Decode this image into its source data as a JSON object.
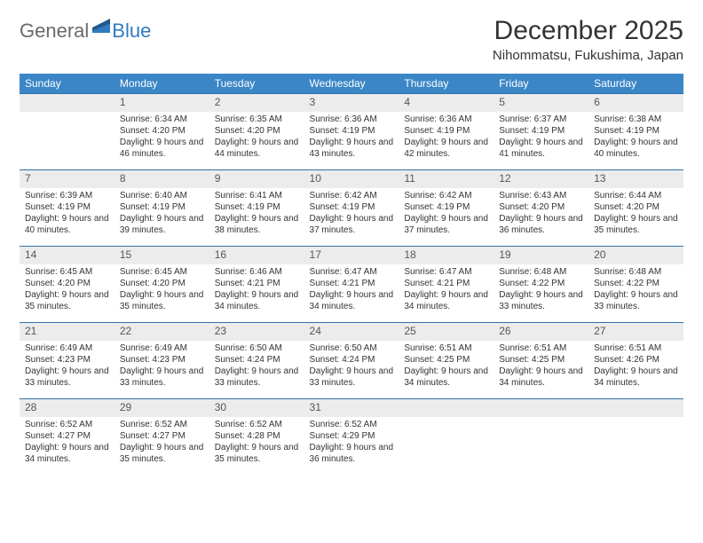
{
  "logo": {
    "text1": "General",
    "text2": "Blue"
  },
  "title": "December 2025",
  "location": "Nihommatsu, Fukushima, Japan",
  "colors": {
    "header_bg": "#3b86c6",
    "header_text": "#ffffff",
    "daynum_bg": "#ececec",
    "border": "#2f6fa8",
    "body_text": "#333333",
    "logo_gray": "#6a6a6a",
    "logo_blue": "#2f7bbf"
  },
  "day_headers": [
    "Sunday",
    "Monday",
    "Tuesday",
    "Wednesday",
    "Thursday",
    "Friday",
    "Saturday"
  ],
  "weeks": [
    [
      null,
      {
        "n": "1",
        "sr": "Sunrise: 6:34 AM",
        "ss": "Sunset: 4:20 PM",
        "dl": "Daylight: 9 hours and 46 minutes."
      },
      {
        "n": "2",
        "sr": "Sunrise: 6:35 AM",
        "ss": "Sunset: 4:20 PM",
        "dl": "Daylight: 9 hours and 44 minutes."
      },
      {
        "n": "3",
        "sr": "Sunrise: 6:36 AM",
        "ss": "Sunset: 4:19 PM",
        "dl": "Daylight: 9 hours and 43 minutes."
      },
      {
        "n": "4",
        "sr": "Sunrise: 6:36 AM",
        "ss": "Sunset: 4:19 PM",
        "dl": "Daylight: 9 hours and 42 minutes."
      },
      {
        "n": "5",
        "sr": "Sunrise: 6:37 AM",
        "ss": "Sunset: 4:19 PM",
        "dl": "Daylight: 9 hours and 41 minutes."
      },
      {
        "n": "6",
        "sr": "Sunrise: 6:38 AM",
        "ss": "Sunset: 4:19 PM",
        "dl": "Daylight: 9 hours and 40 minutes."
      }
    ],
    [
      {
        "n": "7",
        "sr": "Sunrise: 6:39 AM",
        "ss": "Sunset: 4:19 PM",
        "dl": "Daylight: 9 hours and 40 minutes."
      },
      {
        "n": "8",
        "sr": "Sunrise: 6:40 AM",
        "ss": "Sunset: 4:19 PM",
        "dl": "Daylight: 9 hours and 39 minutes."
      },
      {
        "n": "9",
        "sr": "Sunrise: 6:41 AM",
        "ss": "Sunset: 4:19 PM",
        "dl": "Daylight: 9 hours and 38 minutes."
      },
      {
        "n": "10",
        "sr": "Sunrise: 6:42 AM",
        "ss": "Sunset: 4:19 PM",
        "dl": "Daylight: 9 hours and 37 minutes."
      },
      {
        "n": "11",
        "sr": "Sunrise: 6:42 AM",
        "ss": "Sunset: 4:19 PM",
        "dl": "Daylight: 9 hours and 37 minutes."
      },
      {
        "n": "12",
        "sr": "Sunrise: 6:43 AM",
        "ss": "Sunset: 4:20 PM",
        "dl": "Daylight: 9 hours and 36 minutes."
      },
      {
        "n": "13",
        "sr": "Sunrise: 6:44 AM",
        "ss": "Sunset: 4:20 PM",
        "dl": "Daylight: 9 hours and 35 minutes."
      }
    ],
    [
      {
        "n": "14",
        "sr": "Sunrise: 6:45 AM",
        "ss": "Sunset: 4:20 PM",
        "dl": "Daylight: 9 hours and 35 minutes."
      },
      {
        "n": "15",
        "sr": "Sunrise: 6:45 AM",
        "ss": "Sunset: 4:20 PM",
        "dl": "Daylight: 9 hours and 35 minutes."
      },
      {
        "n": "16",
        "sr": "Sunrise: 6:46 AM",
        "ss": "Sunset: 4:21 PM",
        "dl": "Daylight: 9 hours and 34 minutes."
      },
      {
        "n": "17",
        "sr": "Sunrise: 6:47 AM",
        "ss": "Sunset: 4:21 PM",
        "dl": "Daylight: 9 hours and 34 minutes."
      },
      {
        "n": "18",
        "sr": "Sunrise: 6:47 AM",
        "ss": "Sunset: 4:21 PM",
        "dl": "Daylight: 9 hours and 34 minutes."
      },
      {
        "n": "19",
        "sr": "Sunrise: 6:48 AM",
        "ss": "Sunset: 4:22 PM",
        "dl": "Daylight: 9 hours and 33 minutes."
      },
      {
        "n": "20",
        "sr": "Sunrise: 6:48 AM",
        "ss": "Sunset: 4:22 PM",
        "dl": "Daylight: 9 hours and 33 minutes."
      }
    ],
    [
      {
        "n": "21",
        "sr": "Sunrise: 6:49 AM",
        "ss": "Sunset: 4:23 PM",
        "dl": "Daylight: 9 hours and 33 minutes."
      },
      {
        "n": "22",
        "sr": "Sunrise: 6:49 AM",
        "ss": "Sunset: 4:23 PM",
        "dl": "Daylight: 9 hours and 33 minutes."
      },
      {
        "n": "23",
        "sr": "Sunrise: 6:50 AM",
        "ss": "Sunset: 4:24 PM",
        "dl": "Daylight: 9 hours and 33 minutes."
      },
      {
        "n": "24",
        "sr": "Sunrise: 6:50 AM",
        "ss": "Sunset: 4:24 PM",
        "dl": "Daylight: 9 hours and 33 minutes."
      },
      {
        "n": "25",
        "sr": "Sunrise: 6:51 AM",
        "ss": "Sunset: 4:25 PM",
        "dl": "Daylight: 9 hours and 34 minutes."
      },
      {
        "n": "26",
        "sr": "Sunrise: 6:51 AM",
        "ss": "Sunset: 4:25 PM",
        "dl": "Daylight: 9 hours and 34 minutes."
      },
      {
        "n": "27",
        "sr": "Sunrise: 6:51 AM",
        "ss": "Sunset: 4:26 PM",
        "dl": "Daylight: 9 hours and 34 minutes."
      }
    ],
    [
      {
        "n": "28",
        "sr": "Sunrise: 6:52 AM",
        "ss": "Sunset: 4:27 PM",
        "dl": "Daylight: 9 hours and 34 minutes."
      },
      {
        "n": "29",
        "sr": "Sunrise: 6:52 AM",
        "ss": "Sunset: 4:27 PM",
        "dl": "Daylight: 9 hours and 35 minutes."
      },
      {
        "n": "30",
        "sr": "Sunrise: 6:52 AM",
        "ss": "Sunset: 4:28 PM",
        "dl": "Daylight: 9 hours and 35 minutes."
      },
      {
        "n": "31",
        "sr": "Sunrise: 6:52 AM",
        "ss": "Sunset: 4:29 PM",
        "dl": "Daylight: 9 hours and 36 minutes."
      },
      null,
      null,
      null
    ]
  ]
}
